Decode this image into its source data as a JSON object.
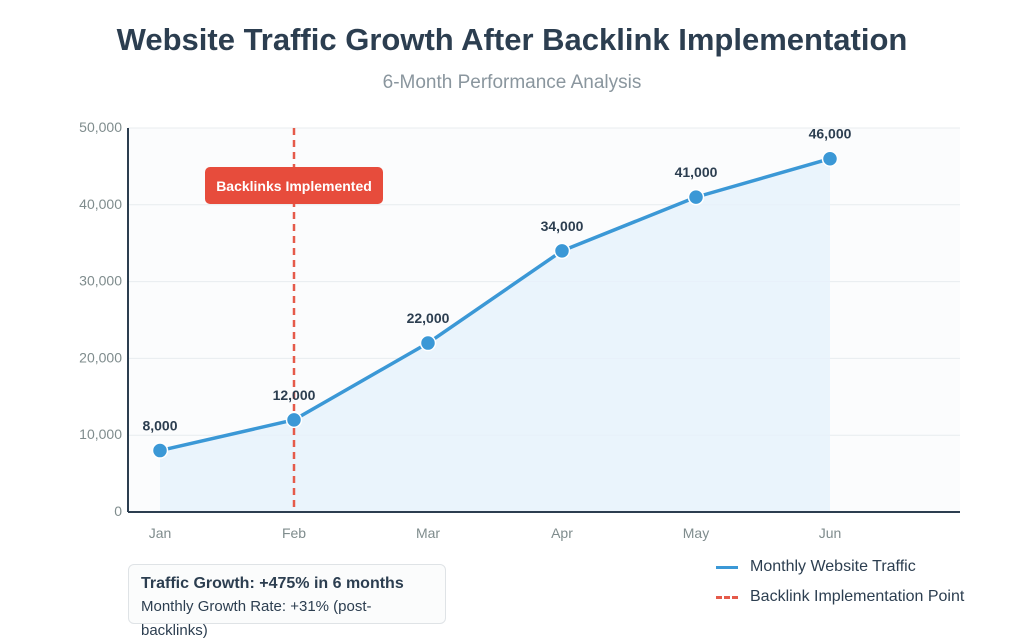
{
  "chart_data": {
    "type": "line",
    "title": "Website Traffic Growth After Backlink Implementation",
    "subtitle": "6-Month Performance Analysis",
    "categories": [
      "Jan",
      "Feb",
      "Mar",
      "Apr",
      "May",
      "Jun"
    ],
    "series": [
      {
        "name": "Monthly Website Traffic",
        "values": [
          8000,
          12000,
          22000,
          34000,
          41000,
          46000
        ],
        "data_labels": [
          "8,000",
          "12,000",
          "22,000",
          "34,000",
          "41,000",
          "46,000"
        ],
        "color": "#3b98d6"
      }
    ],
    "ylim": [
      0,
      50000
    ],
    "yticks": [
      0,
      10000,
      20000,
      30000,
      40000,
      50000
    ],
    "ytick_labels": [
      "0",
      "10,000",
      "20,000",
      "30,000",
      "40,000",
      "50,000"
    ],
    "grid": true,
    "annotation": {
      "label": "Backlinks Implemented",
      "at_category": "Feb",
      "color": "#e74c3c"
    },
    "legend": {
      "placement": "bottom-right",
      "entries": [
        {
          "label": "Monthly Website Traffic",
          "style": "solid",
          "color": "#3b98d6"
        },
        {
          "label": "Backlink Implementation Point",
          "style": "dashed",
          "color": "#e55a4a"
        }
      ]
    }
  },
  "stats": {
    "line1": "Traffic Growth: +475% in 6 months",
    "line2": "Monthly Growth Rate: +31% (post-backlinks)"
  }
}
